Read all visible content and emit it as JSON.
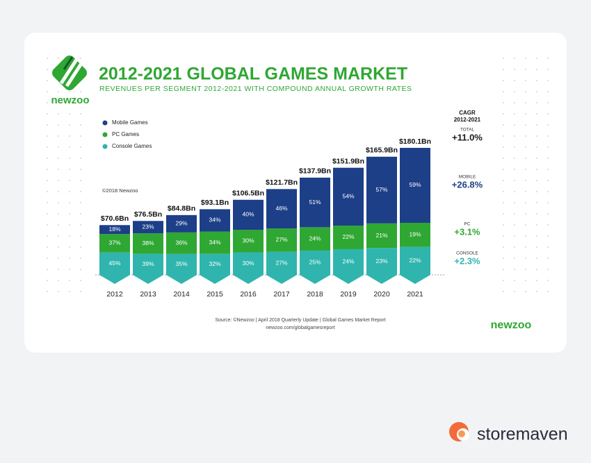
{
  "chart_data": {
    "type": "bar",
    "stacked": true,
    "title": "2012-2021 GLOBAL GAMES MARKET",
    "subtitle": "REVENUES PER SEGMENT 2012-2021 WITH COMPOUND ANNUAL GROWTH RATES",
    "copyright": "©2018 Newzoo",
    "source": [
      "Source: ©Newzoo | April 2018 Quarterly Update | Global Games Market Report",
      "newzoo.com/globalgamesreport"
    ],
    "categories": [
      "2012",
      "2013",
      "2014",
      "2015",
      "2016",
      "2017",
      "2018",
      "2019",
      "2020",
      "2021"
    ],
    "totals": {
      "values": [
        70.6,
        76.5,
        84.8,
        93.1,
        106.5,
        121.7,
        137.9,
        151.9,
        165.9,
        180.1
      ],
      "value_labels": [
        "$70.6Bn",
        "$76.5Bn",
        "$84.8Bn",
        "$93.1Bn",
        "$106.5Bn",
        "$121.7Bn",
        "$137.9Bn",
        "$151.9Bn",
        "$165.9Bn",
        "$180.1Bn"
      ]
    },
    "series": [
      {
        "name": "Mobile Games",
        "color": "#1d3f88",
        "values": [
          18,
          23,
          29,
          34,
          40,
          46,
          51,
          54,
          57,
          59
        ],
        "value_labels": [
          "18%",
          "23%",
          "29%",
          "34%",
          "40%",
          "46%",
          "51%",
          "54%",
          "57%",
          "59%"
        ]
      },
      {
        "name": "PC Games",
        "color": "#2fa733",
        "values": [
          37,
          38,
          36,
          34,
          30,
          27,
          24,
          22,
          21,
          19
        ],
        "value_labels": [
          "37%",
          "38%",
          "36%",
          "34%",
          "30%",
          "27%",
          "24%",
          "22%",
          "21%",
          "19%"
        ]
      },
      {
        "name": "Console Games",
        "color": "#2fb5ae",
        "values": [
          45,
          39,
          35,
          32,
          30,
          27,
          25,
          24,
          23,
          22
        ],
        "value_labels": [
          "45%",
          "39%",
          "35%",
          "32%",
          "30%",
          "27%",
          "25%",
          "24%",
          "23%",
          "22%"
        ]
      }
    ],
    "cagr": {
      "title": [
        "CAGR",
        "2012-2021"
      ],
      "items": [
        {
          "name": "TOTAL",
          "value": "+11.0%",
          "color": "#1a1a1a"
        },
        {
          "name": "MOBILE",
          "value": "+26.8%",
          "color": "#1d3f88"
        },
        {
          "name": "PC",
          "value": "+3.1%",
          "color": "#2fa733"
        },
        {
          "name": "CONSOLE",
          "value": "+2.3%",
          "color": "#2fb5ae"
        }
      ]
    }
  },
  "brand": {
    "logo_text": "newzoo",
    "footer_logo": "newzoo",
    "watermark": "storemaven"
  }
}
